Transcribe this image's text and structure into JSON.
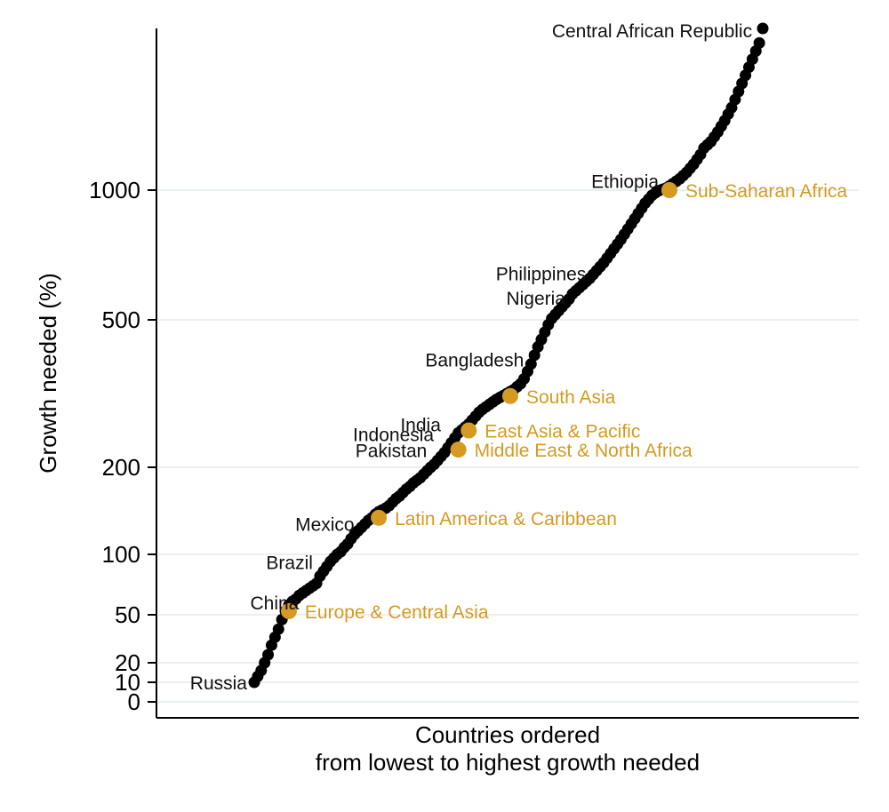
{
  "chart_data": {
    "type": "scatter",
    "title": "",
    "ylabel": "Growth needed (%)",
    "xlabel_lines": [
      "Countries ordered",
      "from lowest to highest growth needed"
    ],
    "y_scale": "non-linear",
    "y_ticks": [
      {
        "label": "0",
        "value": 0
      },
      {
        "label": "10",
        "value": 10
      },
      {
        "label": "20",
        "value": 20
      },
      {
        "label": "50",
        "value": 50
      },
      {
        "label": "100",
        "value": 100
      },
      {
        "label": "200",
        "value": 200
      },
      {
        "label": "500",
        "value": 500
      },
      {
        "label": "1000",
        "value": 1000
      }
    ],
    "grid": true,
    "colors": {
      "countries": "#000000",
      "regions": "#d59a22",
      "grid": "#e3ecec"
    },
    "labeled_countries": [
      {
        "name": "Russia",
        "rank": 1,
        "value": 10
      },
      {
        "name": "China",
        "rank": 16,
        "value": 66
      },
      {
        "name": "Brazil",
        "rank": 20,
        "value": 88
      },
      {
        "name": "Mexico",
        "rank": 32,
        "value": 135
      },
      {
        "name": "Pakistan",
        "rank": 53,
        "value": 235
      },
      {
        "name": "Indonesia",
        "rank": 55,
        "value": 268
      },
      {
        "name": "India",
        "rank": 57,
        "value": 288
      },
      {
        "name": "Bangladesh",
        "rank": 81,
        "value": 420
      },
      {
        "name": "Nigeria",
        "rank": 93,
        "value": 600
      },
      {
        "name": "Philippines",
        "rank": 99,
        "value": 660
      },
      {
        "name": "Ethiopia",
        "rank": 120,
        "value": 1025
      },
      {
        "name": "Central African Republic",
        "rank": 147,
        "value": 2000
      }
    ],
    "regional_averages": [
      {
        "name": "Europe & Central Asia",
        "rank": 11,
        "value": 53
      },
      {
        "name": "Latin America & Caribbean",
        "rank": 37,
        "value": 142
      },
      {
        "name": "Middle East & North Africa",
        "rank": 60,
        "value": 236
      },
      {
        "name": "East Asia & Pacific",
        "rank": 63,
        "value": 275
      },
      {
        "name": "South Asia",
        "rank": 75,
        "value": 345
      },
      {
        "name": "Sub-Saharan Africa",
        "rank": 121,
        "value": 1000
      }
    ],
    "series_ranked_values": [
      10,
      13,
      16,
      20,
      25,
      31,
      36,
      41,
      47,
      53,
      58,
      61,
      63,
      66,
      68,
      70,
      72,
      74,
      76,
      82,
      86,
      90,
      94,
      97,
      100,
      103,
      108,
      112,
      118,
      123,
      127,
      131,
      135,
      139,
      142,
      146,
      149,
      151,
      153,
      156,
      160,
      164,
      167,
      171,
      175,
      178,
      182,
      185,
      188,
      192,
      196,
      200,
      206,
      214,
      222,
      230,
      240,
      250,
      260,
      270,
      276,
      282,
      288,
      296,
      304,
      312,
      318,
      323,
      328,
      333,
      338,
      342,
      346,
      350,
      354,
      358,
      364,
      370,
      380,
      395,
      410,
      428,
      445,
      460,
      475,
      490,
      505,
      520,
      535,
      550,
      565,
      580,
      600,
      612,
      624,
      636,
      648,
      660,
      675,
      690,
      705,
      720,
      738,
      756,
      774,
      792,
      810,
      830,
      850,
      870,
      890,
      910,
      930,
      950,
      965,
      980,
      990,
      998,
      1005,
      1012,
      1025,
      1040,
      1055,
      1070,
      1090,
      1110,
      1135,
      1160,
      1190,
      1220,
      1260,
      1280,
      1300,
      1330,
      1360,
      1395,
      1430,
      1470,
      1510,
      1560,
      1610,
      1660,
      1710,
      1760,
      1810,
      1860,
      1910,
      2000
    ]
  }
}
